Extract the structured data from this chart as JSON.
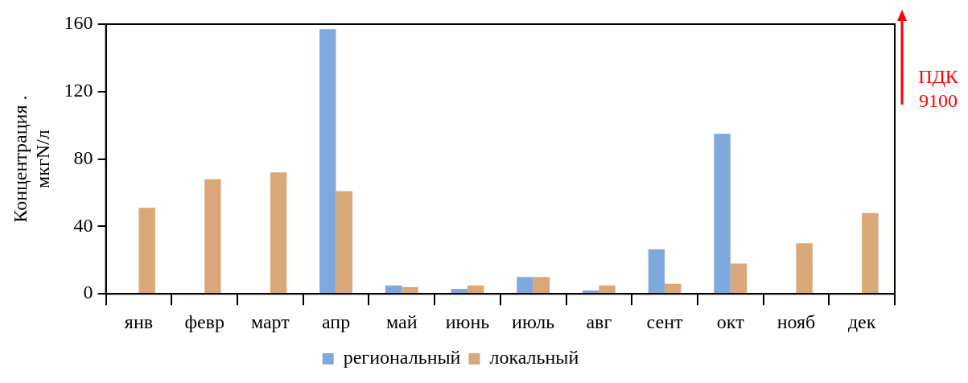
{
  "chart_data": {
    "type": "bar",
    "ylabel": "Концентрация . мкгN/л",
    "categories": [
      "янв",
      "февр",
      "март",
      "апр",
      "май",
      "июнь",
      "июль",
      "авг",
      "сент",
      "окт",
      "нояб",
      "дек"
    ],
    "series": [
      {
        "name": "региональный",
        "color": "#7fa9dc",
        "values": [
          null,
          null,
          null,
          157,
          5,
          3,
          10,
          2,
          26.5,
          95,
          null,
          null
        ]
      },
      {
        "name": "локальный",
        "color": "#d8a878",
        "values": [
          51,
          68,
          72,
          61,
          4,
          5,
          10,
          5,
          6,
          18,
          30,
          48
        ]
      }
    ],
    "ylim": [
      0,
      160
    ],
    "yticks": [
      0,
      40,
      80,
      120,
      160
    ],
    "grid": false,
    "legend": "bottom",
    "annotations": [
      "ПДК 9100"
    ]
  }
}
